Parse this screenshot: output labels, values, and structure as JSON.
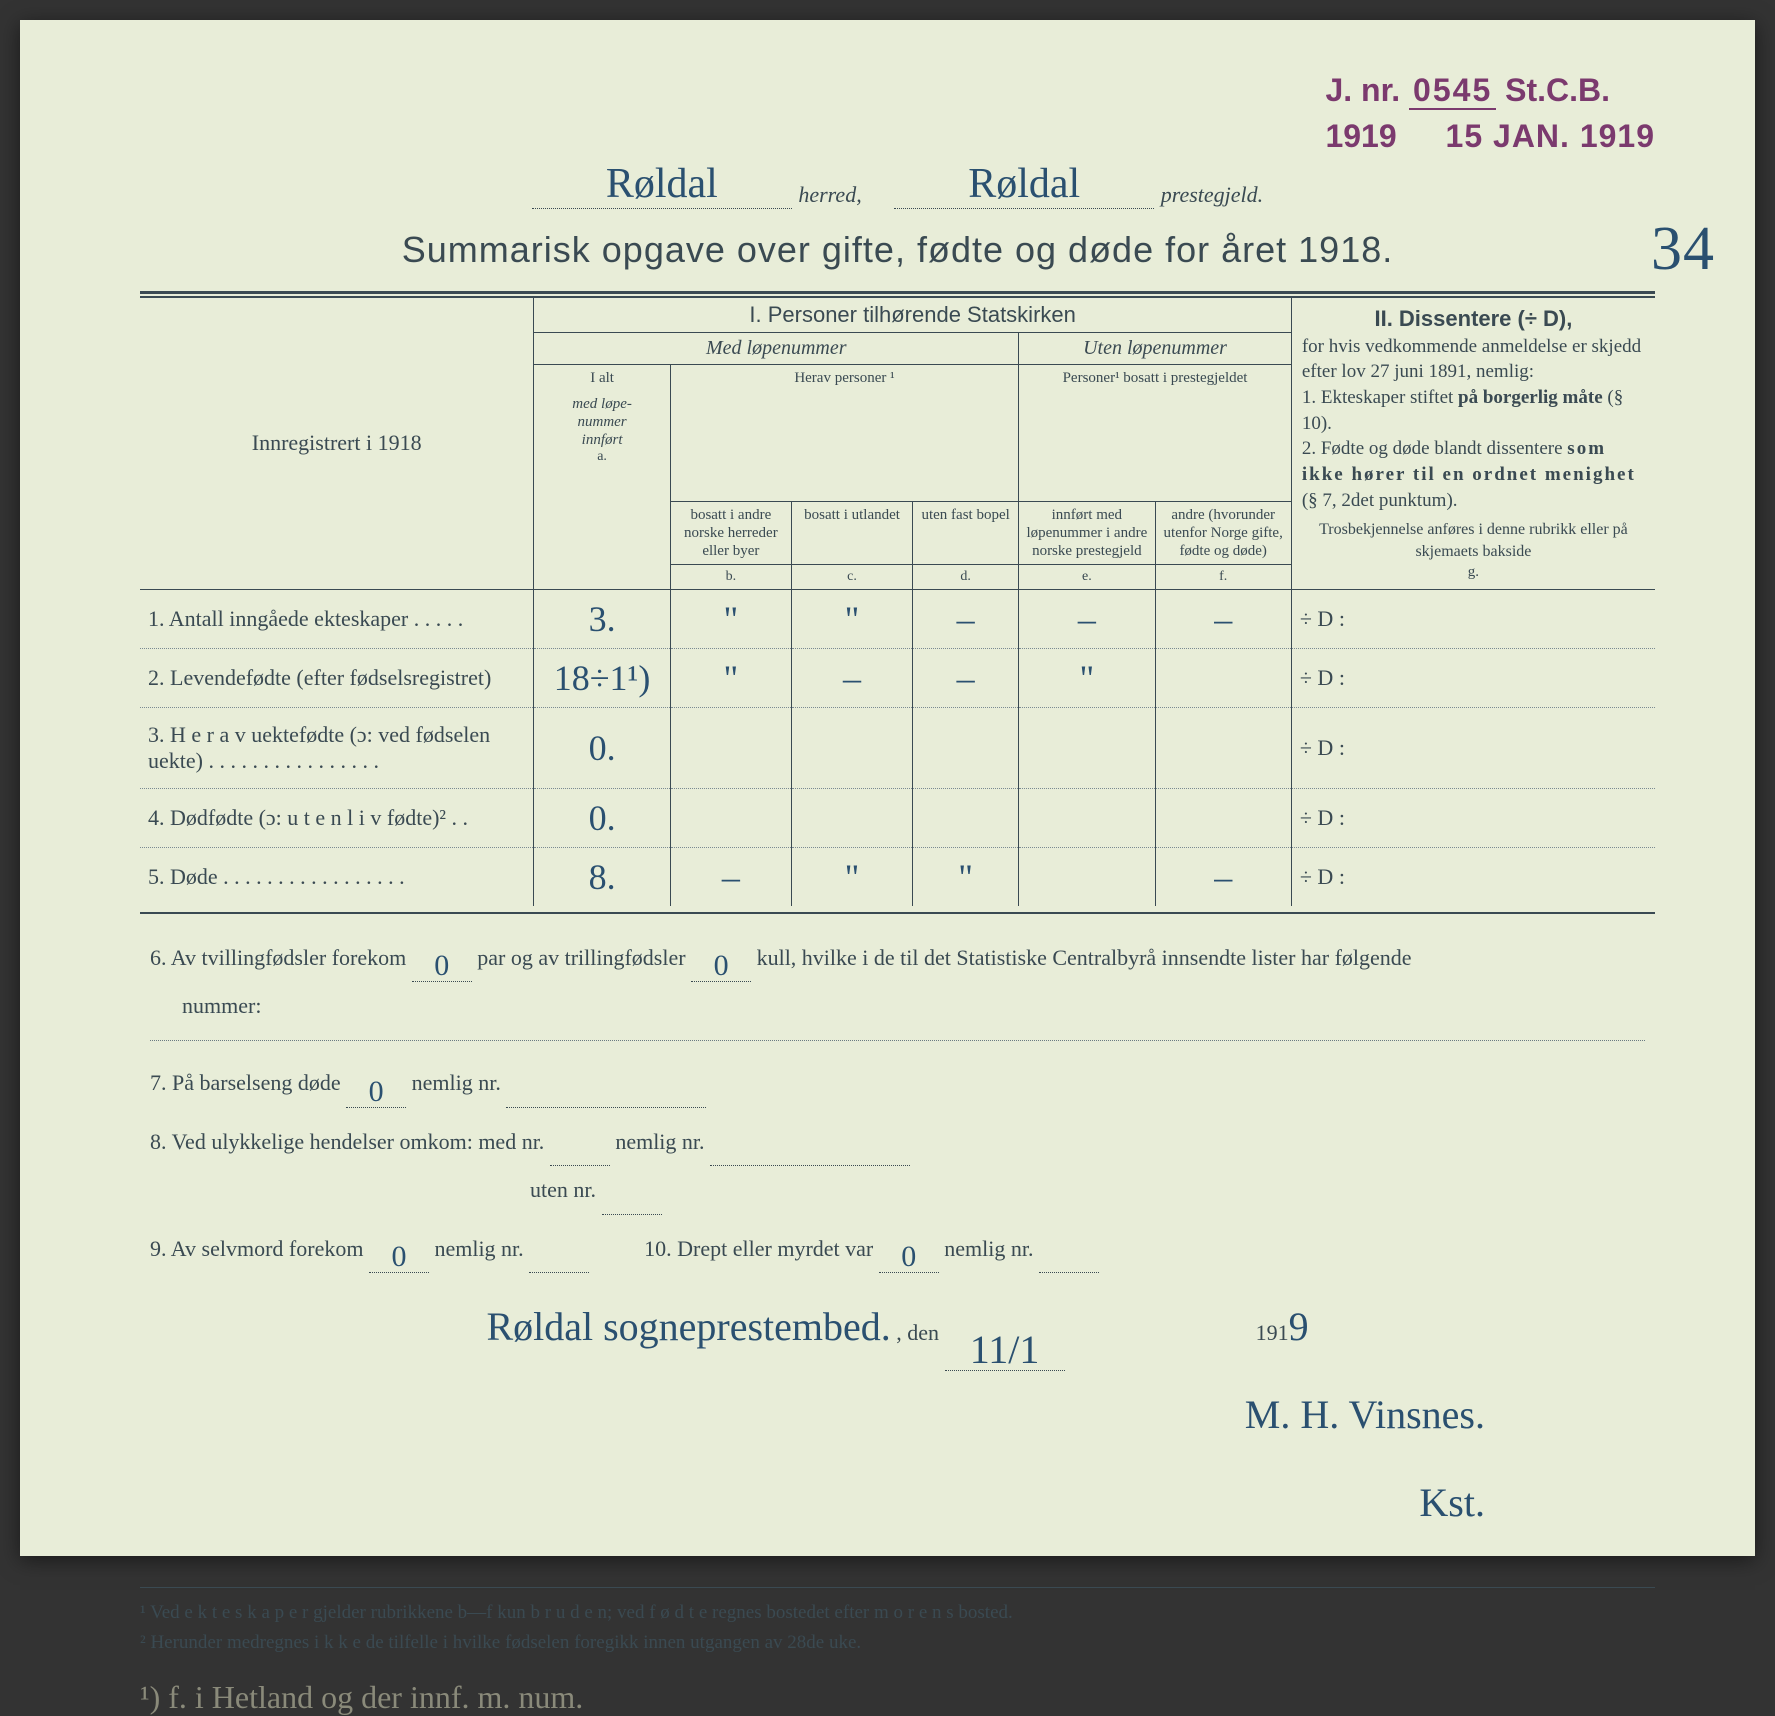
{
  "stamp": {
    "jnr_label": "J. nr.",
    "number": "0545",
    "stcb": "St.C.B.",
    "year": "1919",
    "date_received": "15 JAN. 1919"
  },
  "header": {
    "herred_value": "Røldal",
    "herred_label": "herred,",
    "prestegjeld_value": "Røldal",
    "prestegjeld_label": "prestegjeld."
  },
  "title": "Summarisk opgave over gifte, fødte og døde for året 1918.",
  "page_number_handwritten": "34",
  "table_headers": {
    "left_label": "Innregistrert i 1918",
    "section1": "I.  Personer tilhørende Statskirken",
    "med_lope": "Med løpenummer",
    "uten_lope": "Uten løpenummer",
    "herav": "Herav personer",
    "personer_bosatt": "Personer¹ bosatt i prestegjeldet",
    "col_a_top": "I alt",
    "col_a_mid1": "med løpe-",
    "col_a_mid2": "nummer",
    "col_a_mid3": "innført",
    "col_a_letter": "a.",
    "col_b": "bosatt i andre norske herreder eller byer",
    "col_b_letter": "b.",
    "col_c": "bosatt i utlandet",
    "col_c_letter": "c.",
    "col_d": "uten fast bopel",
    "col_d_letter": "d.",
    "col_e": "innført med løpenummer i andre norske prestegjeld",
    "col_e_letter": "e.",
    "col_f": "andre (hvorunder utenfor Norge gifte, fødte og døde)",
    "col_f_letter": "f.",
    "section2_title": "II.  Dissentere (÷ D),",
    "section2_body1": "for hvis vedkommende anmeldelse er skjedd efter lov 27 juni 1891, nemlig:",
    "section2_item1a": "1. Ekteskaper stiftet ",
    "section2_item1b": "på borgerlig måte",
    "section2_item1c": " (§ 10).",
    "section2_item2a": "2. Fødte og døde blandt dissentere ",
    "section2_item2b": "som ikke hører til en ordnet menighet",
    "section2_item2c": " (§ 7, 2det punktum).",
    "section2_foot": "Trosbekjennelse anføres i denne rubrikk eller på skjemaets bakside",
    "col_g_letter": "g."
  },
  "rows": [
    {
      "num": "1.",
      "label": "Antall inngåede ekteskaper . . . . .",
      "a": "3.",
      "b": "\"",
      "c": "\"",
      "d": "–",
      "e": "–",
      "f": "–",
      "diss": "÷ D :"
    },
    {
      "num": "2.",
      "label": "Levendefødte (efter fødselsregistret)",
      "a": "18÷1¹)",
      "b": "\"",
      "c": "–",
      "d": "–",
      "e": "\"",
      "f": "",
      "diss": "÷ D :"
    },
    {
      "num": "3.",
      "label": "H e r a v  uektefødte (ɔ: ved fødselen uekte) . . . . . . . . . . . . . . . .",
      "a": "0.",
      "b": "",
      "c": "",
      "d": "",
      "e": "",
      "f": "",
      "diss": "÷ D :"
    },
    {
      "num": "4.",
      "label": "Dødfødte (ɔ: u t e n  l i v  fødte)² . .",
      "a": "0.",
      "b": "",
      "c": "",
      "d": "",
      "e": "",
      "f": "",
      "diss": "÷ D :"
    },
    {
      "num": "5.",
      "label": "Døde . . . . . . . . . . . . . . . . .",
      "a": "8.",
      "b": "–",
      "c": "\"",
      "d": "\"",
      "e": "",
      "f": "–",
      "diss": "÷ D :"
    }
  ],
  "bottom": {
    "q6a": "6.  Av tvillingfødsler forekom ",
    "q6_val1": "0",
    "q6b": " par og av trillingfødsler ",
    "q6_val2": "0",
    "q6c": " kull, hvilke i de til det Statistiske Centralbyrå innsendte lister har følgende",
    "q6d": "nummer:",
    "q7a": "7.  På barselseng døde ",
    "q7_val": "0",
    "q7b": " nemlig nr. ",
    "q8a": "8.  Ved ulykkelige hendelser omkom:  med nr.",
    "q8b": " nemlig nr. ",
    "q8c": "uten nr. ",
    "q9a": "9.  Av selvmord forekom ",
    "q9_val": "0",
    "q9b": " nemlig nr. ",
    "q10a": "10.  Drept eller myrdet var ",
    "q10_val": "0",
    "q10b": " nemlig nr. "
  },
  "signature": {
    "place": "Røldal sogneprestembed.",
    "den": ", den ",
    "date": "11/1",
    "year_prefix": " 191",
    "year_suffix": "9",
    "sig1": "M. H. Vinsnes.",
    "sig2": "Kst."
  },
  "footnotes": {
    "f1": "¹   Ved e k t e s k a p e r gjelder rubrikkene b—f kun b r u d e n; ved f ø d t e regnes bostedet efter m o r e n s bosted.",
    "f2": "²   Herunder medregnes i k k e de tilfelle i hvilke fødselen foregikk innen utgangen av 28de uke."
  },
  "pencil_note": "¹) f. i Hetland og der innf. m. num."
}
